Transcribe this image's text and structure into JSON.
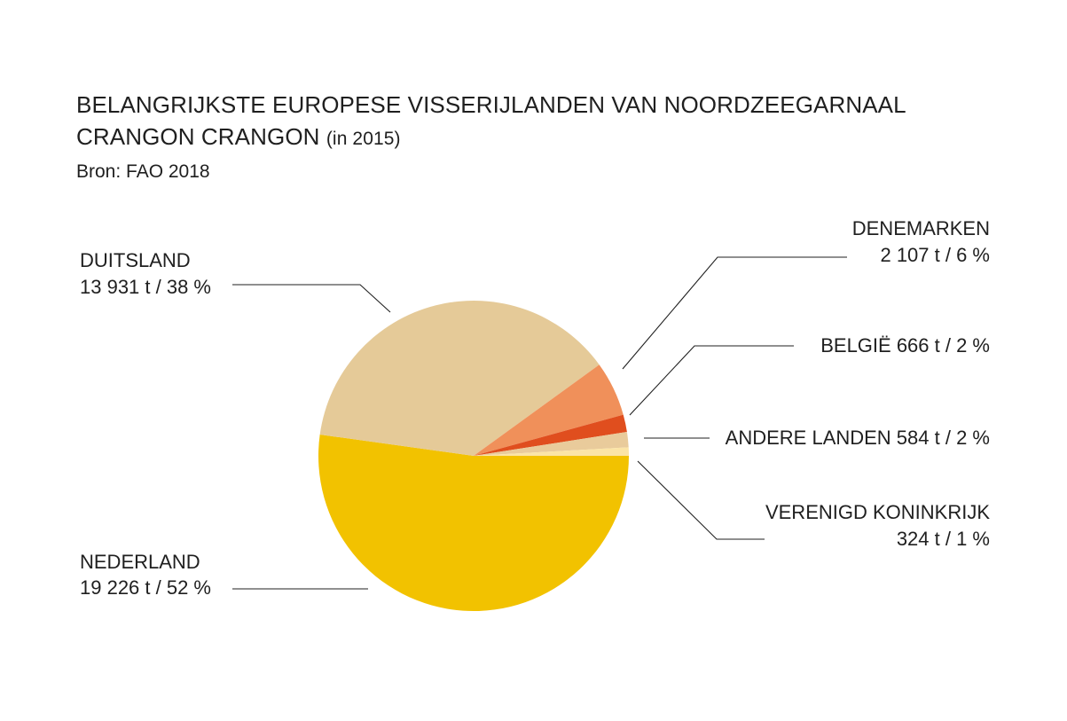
{
  "title": {
    "line1": "BELANGRIJKSTE EUROPESE VISSERIJLANDEN VAN NOORDZEEGARNAAL",
    "line2_main": "CRANGON CRANGON",
    "line2_note": "(in 2015)",
    "source": "Bron: FAO 2018"
  },
  "chart_data": {
    "type": "pie",
    "unit": "t",
    "slices": [
      {
        "name": "NEDERLAND",
        "value": 19226,
        "percent": 52,
        "label_value": "19 226 t / 52 %",
        "color": "#F2C200"
      },
      {
        "name": "DUITSLAND",
        "value": 13931,
        "percent": 38,
        "label_value": "13 931 t / 38 %",
        "color": "#E5CA98"
      },
      {
        "name": "DENEMARKEN",
        "value": 2107,
        "percent": 6,
        "label_value": "2 107 t / 6 %",
        "color": "#F0905A"
      },
      {
        "name": "BELGIË",
        "value": 666,
        "percent": 2,
        "label_value": "666 t / 2 %",
        "color": "#E04E1E"
      },
      {
        "name": "ANDERE LANDEN",
        "value": 584,
        "percent": 2,
        "label_value": "584 t / 2 %",
        "color": "#E9CB9B"
      },
      {
        "name": "VERENIGD KONINKRIJK",
        "value": 324,
        "percent": 1,
        "label_value": "324 t / 1 %",
        "color": "#FBE4A6"
      }
    ]
  }
}
